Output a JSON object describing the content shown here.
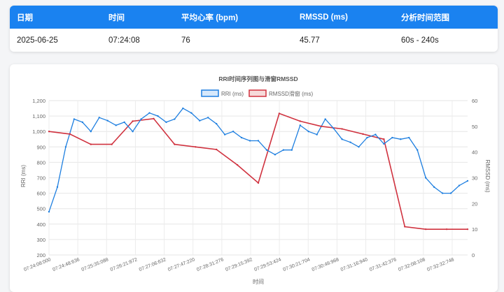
{
  "summary": {
    "headers": [
      "日期",
      "时间",
      "平均心率 (bpm)",
      "RMSSD (ms)",
      "分析时间范围"
    ],
    "values": [
      "2025-06-25",
      "07:24:08",
      "76",
      "45.77",
      "60s - 240s"
    ]
  },
  "colors": {
    "header_bg": "#1a82f0",
    "rri": "#1e7fe0",
    "rmssd": "#d0323f"
  },
  "chart_data": {
    "type": "line",
    "title": "RRI时间序列图与滑窗RMSSD",
    "xlabel": "时间",
    "ylabel": "RRI (ms)",
    "y2label": "RMSSD (ms)",
    "ylim": [
      200,
      1200
    ],
    "y2lim": [
      0,
      60
    ],
    "yticks": [
      "1,200",
      "1,100",
      "1,000",
      "900",
      "800",
      "700",
      "600",
      "500",
      "400",
      "300",
      "200"
    ],
    "y2ticks": [
      "60",
      "50",
      "40",
      "30",
      "20",
      "10",
      "0"
    ],
    "xticks": [
      "07:24:08:000",
      "07:24:48:636",
      "07:25:35:088",
      "07:26:21:872",
      "07:27:06:632",
      "07:27:47:220",
      "07:28:31:276",
      "07:29:15:392",
      "07:29:53:424",
      "07:30:21:704",
      "07:30:49:968",
      "07:31:16:940",
      "07:31:42:376",
      "07:32:08:108",
      "07:32:32:748"
    ],
    "legend_position": "top",
    "grid": true,
    "series": [
      {
        "name": "RRI (ms)",
        "axis": "left",
        "x": [
          0,
          2,
          4,
          6,
          8,
          10,
          12,
          14,
          16,
          18,
          20,
          22,
          24,
          26,
          28,
          30,
          32,
          34,
          36,
          38,
          40,
          42,
          44,
          46,
          48,
          50,
          52,
          54,
          56,
          58,
          60,
          62,
          64,
          66,
          68,
          70,
          72,
          74,
          76,
          78,
          80,
          82,
          84,
          86,
          88,
          90,
          92,
          94,
          96,
          98,
          100
        ],
        "values": [
          480,
          640,
          900,
          1080,
          1060,
          1000,
          1090,
          1070,
          1040,
          1060,
          1000,
          1080,
          1120,
          1100,
          1060,
          1080,
          1150,
          1120,
          1070,
          1090,
          1050,
          980,
          1000,
          960,
          940,
          940,
          880,
          850,
          880,
          880,
          1040,
          1000,
          980,
          1080,
          1020,
          950,
          930,
          900,
          960,
          980,
          920,
          960,
          950,
          960,
          880,
          700,
          640,
          600,
          600,
          650,
          680
        ]
      },
      {
        "name": "RMSSD滑窗 (ms)",
        "axis": "right",
        "x": [
          0,
          5,
          10,
          15,
          20,
          25,
          30,
          35,
          40,
          45,
          50,
          55,
          60,
          65,
          70,
          75,
          80,
          85,
          90,
          95,
          100
        ],
        "values": [
          48,
          47,
          43,
          43,
          52,
          53,
          43,
          42,
          41,
          35,
          28,
          55,
          52,
          50,
          49,
          47,
          45,
          11,
          10,
          10,
          10
        ]
      }
    ]
  }
}
